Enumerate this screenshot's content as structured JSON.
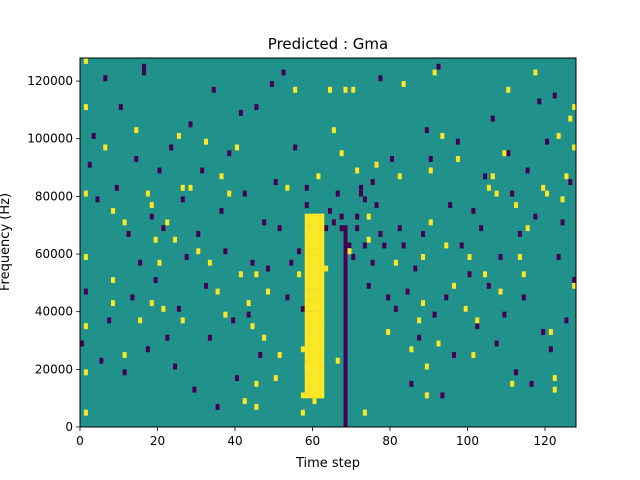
{
  "chart_data": {
    "type": "heatmap",
    "title": "Predicted : Gma",
    "xlabel": "Time step",
    "ylabel": "Frequency (Hz)",
    "xlim": [
      0,
      128
    ],
    "ylim": [
      0,
      128000
    ],
    "xticks": [
      0,
      20,
      40,
      60,
      80,
      100,
      120
    ],
    "xtick_labels": [
      "0",
      "20",
      "40",
      "60",
      "80",
      "100",
      "120"
    ],
    "yticks": [
      0,
      20000,
      40000,
      60000,
      80000,
      100000,
      120000
    ],
    "ytick_labels": [
      "0",
      "20000",
      "40000",
      "60000",
      "80000",
      "100000",
      "120000"
    ],
    "n_bins": 64,
    "colormap": {
      "low": "#440154",
      "background": "#21918c",
      "high": "#fde725"
    },
    "background_value": 0,
    "high_cells": [
      [
        1,
        63
      ],
      [
        1,
        55
      ],
      [
        1,
        40
      ],
      [
        1,
        29
      ],
      [
        1,
        17
      ],
      [
        1,
        9
      ],
      [
        1,
        2
      ],
      [
        6,
        48
      ],
      [
        8,
        37
      ],
      [
        8,
        25
      ],
      [
        8,
        21
      ],
      [
        11,
        35
      ],
      [
        11,
        12
      ],
      [
        14,
        51
      ],
      [
        15,
        18
      ],
      [
        17,
        40
      ],
      [
        18,
        21
      ],
      [
        18,
        38
      ],
      [
        19,
        32
      ],
      [
        20,
        28
      ],
      [
        21,
        20
      ],
      [
        22,
        35
      ],
      [
        24,
        32
      ],
      [
        25,
        50
      ],
      [
        26,
        41
      ],
      [
        26,
        18
      ],
      [
        28,
        41
      ],
      [
        30,
        30
      ],
      [
        32,
        49
      ],
      [
        33,
        28
      ],
      [
        35,
        23
      ],
      [
        36,
        43
      ],
      [
        37,
        19
      ],
      [
        38,
        40
      ],
      [
        40,
        48
      ],
      [
        41,
        26
      ],
      [
        42,
        4
      ],
      [
        43,
        21
      ],
      [
        44,
        17
      ],
      [
        45,
        3
      ],
      [
        45,
        7
      ],
      [
        45,
        26
      ],
      [
        47,
        15
      ],
      [
        48,
        23
      ],
      [
        50,
        8
      ],
      [
        51,
        12
      ],
      [
        53,
        41
      ],
      [
        55,
        58
      ],
      [
        56,
        26
      ],
      [
        57,
        2
      ],
      [
        57,
        5
      ],
      [
        57,
        13
      ],
      [
        58,
        10
      ],
      [
        59,
        33
      ],
      [
        60,
        4
      ],
      [
        60,
        35
      ],
      [
        61,
        17
      ],
      [
        61,
        43
      ],
      [
        63,
        27
      ],
      [
        64,
        58
      ],
      [
        65,
        51
      ],
      [
        66,
        11
      ],
      [
        67,
        47
      ],
      [
        68,
        58
      ],
      [
        69,
        30
      ],
      [
        70,
        58
      ],
      [
        71,
        44
      ],
      [
        73,
        2
      ],
      [
        74,
        32
      ],
      [
        74,
        36
      ],
      [
        76,
        45
      ],
      [
        79,
        16
      ],
      [
        81,
        28
      ],
      [
        82,
        43
      ],
      [
        83,
        59
      ],
      [
        85,
        13
      ],
      [
        87,
        18
      ],
      [
        88,
        29
      ],
      [
        88,
        21
      ],
      [
        89,
        5
      ],
      [
        89,
        10
      ],
      [
        90,
        35
      ],
      [
        90,
        44
      ],
      [
        91,
        61
      ],
      [
        92,
        14
      ],
      [
        93,
        50
      ],
      [
        94,
        31
      ],
      [
        96,
        24
      ],
      [
        97,
        46
      ],
      [
        99,
        20
      ],
      [
        100,
        29
      ],
      [
        101,
        12
      ],
      [
        102,
        18
      ],
      [
        104,
        26
      ],
      [
        105,
        41
      ],
      [
        106,
        43
      ],
      [
        107,
        40
      ],
      [
        108,
        23
      ],
      [
        109,
        47
      ],
      [
        110,
        58
      ],
      [
        111,
        7
      ],
      [
        112,
        38
      ],
      [
        113,
        29
      ],
      [
        114,
        26
      ],
      [
        115,
        34
      ],
      [
        117,
        61
      ],
      [
        119,
        41
      ],
      [
        120,
        40
      ],
      [
        121,
        16
      ],
      [
        122,
        8
      ],
      [
        122,
        6
      ],
      [
        123,
        50
      ],
      [
        124,
        39
      ],
      [
        125,
        43
      ],
      [
        126,
        53
      ],
      [
        127,
        24
      ],
      [
        127,
        55
      ],
      [
        127,
        48
      ]
    ],
    "low_cells": [
      [
        0,
        14
      ],
      [
        1,
        23
      ],
      [
        2,
        45
      ],
      [
        3,
        50
      ],
      [
        4,
        39
      ],
      [
        5,
        11
      ],
      [
        6,
        60
      ],
      [
        7,
        18
      ],
      [
        9,
        41
      ],
      [
        10,
        55
      ],
      [
        11,
        9
      ],
      [
        12,
        33
      ],
      [
        13,
        22
      ],
      [
        14,
        46
      ],
      [
        15,
        28
      ],
      [
        16,
        61
      ],
      [
        16,
        62
      ],
      [
        17,
        13
      ],
      [
        18,
        36
      ],
      [
        19,
        25
      ],
      [
        20,
        44
      ],
      [
        21,
        34
      ],
      [
        22,
        15
      ],
      [
        23,
        48
      ],
      [
        24,
        10
      ],
      [
        25,
        20
      ],
      [
        26,
        39
      ],
      [
        27,
        29
      ],
      [
        28,
        52
      ],
      [
        29,
        6
      ],
      [
        30,
        33
      ],
      [
        31,
        44
      ],
      [
        32,
        24
      ],
      [
        33,
        15
      ],
      [
        34,
        58
      ],
      [
        35,
        3
      ],
      [
        36,
        37
      ],
      [
        37,
        30
      ],
      [
        38,
        47
      ],
      [
        39,
        18
      ],
      [
        40,
        8
      ],
      [
        41,
        54
      ],
      [
        42,
        40
      ],
      [
        43,
        19
      ],
      [
        44,
        28
      ],
      [
        45,
        55
      ],
      [
        46,
        12
      ],
      [
        47,
        35
      ],
      [
        48,
        27
      ],
      [
        49,
        59
      ],
      [
        50,
        42
      ],
      [
        51,
        34
      ],
      [
        52,
        61
      ],
      [
        53,
        22
      ],
      [
        54,
        28
      ],
      [
        55,
        48
      ],
      [
        56,
        30
      ],
      [
        57,
        20
      ],
      [
        58,
        41
      ],
      [
        58,
        38
      ],
      [
        59,
        19
      ],
      [
        59,
        21
      ],
      [
        60,
        29
      ],
      [
        61,
        31
      ],
      [
        62,
        10
      ],
      [
        63,
        34
      ],
      [
        64,
        37
      ],
      [
        65,
        35
      ],
      [
        66,
        40
      ],
      [
        67,
        34
      ],
      [
        67,
        36
      ],
      [
        68,
        32
      ],
      [
        68,
        30
      ],
      [
        69,
        31
      ],
      [
        70,
        29
      ],
      [
        71,
        34
      ],
      [
        71,
        36
      ],
      [
        72,
        40
      ],
      [
        72,
        41
      ],
      [
        73,
        39
      ],
      [
        73,
        31
      ],
      [
        74,
        24
      ],
      [
        75,
        42
      ],
      [
        75,
        28
      ],
      [
        76,
        38
      ],
      [
        77,
        60
      ],
      [
        77,
        33
      ],
      [
        78,
        31
      ],
      [
        79,
        22
      ],
      [
        80,
        46
      ],
      [
        81,
        20
      ],
      [
        82,
        34
      ],
      [
        83,
        31
      ],
      [
        84,
        23
      ],
      [
        85,
        7
      ],
      [
        86,
        27
      ],
      [
        87,
        15
      ],
      [
        88,
        33
      ],
      [
        89,
        51
      ],
      [
        90,
        46
      ],
      [
        91,
        19
      ],
      [
        92,
        62
      ],
      [
        93,
        5
      ],
      [
        94,
        22
      ],
      [
        95,
        38
      ],
      [
        96,
        12
      ],
      [
        97,
        49
      ],
      [
        98,
        31
      ],
      [
        99,
        20
      ],
      [
        100,
        26
      ],
      [
        101,
        37
      ],
      [
        102,
        17
      ],
      [
        103,
        34
      ],
      [
        104,
        43
      ],
      [
        105,
        24
      ],
      [
        106,
        53
      ],
      [
        107,
        14
      ],
      [
        108,
        29
      ],
      [
        109,
        19
      ],
      [
        110,
        47
      ],
      [
        111,
        40
      ],
      [
        112,
        9
      ],
      [
        113,
        33
      ],
      [
        114,
        22
      ],
      [
        115,
        44
      ],
      [
        116,
        7
      ],
      [
        117,
        36
      ],
      [
        118,
        56
      ],
      [
        119,
        16
      ],
      [
        120,
        49
      ],
      [
        121,
        13
      ],
      [
        122,
        57
      ],
      [
        123,
        29
      ],
      [
        124,
        35
      ],
      [
        125,
        18
      ],
      [
        126,
        42
      ],
      [
        127,
        25
      ]
    ],
    "high_band": {
      "cols": [
        58,
        59,
        60,
        61,
        62
      ],
      "bins": [
        5,
        36
      ]
    },
    "low_band": {
      "cols": [
        68
      ],
      "bins": [
        0,
        34
      ]
    }
  }
}
